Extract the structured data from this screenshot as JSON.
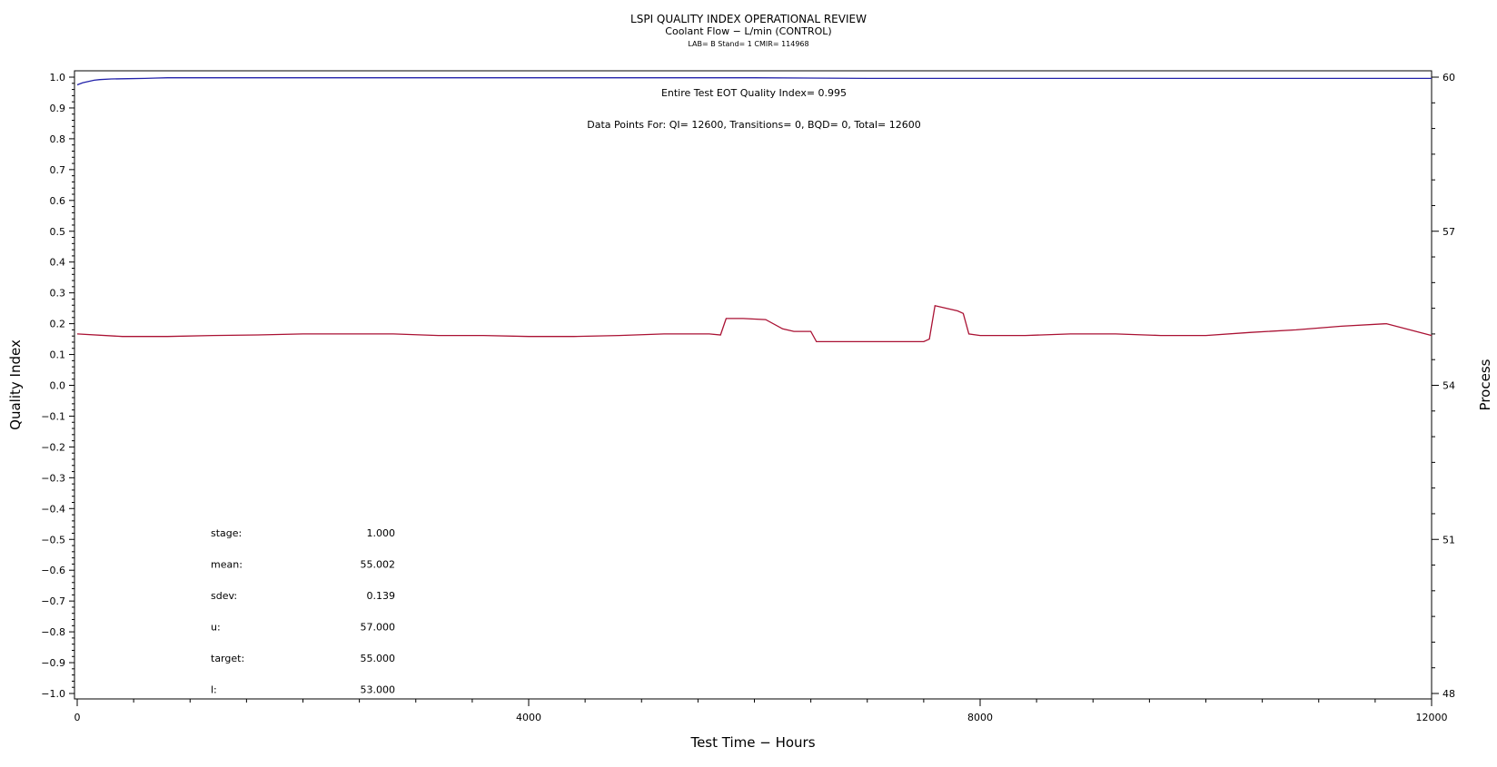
{
  "chart_data": {
    "type": "line",
    "title": "LSPI QUALITY INDEX OPERATIONAL REVIEW",
    "subtitle": "Coolant Flow − L/min (CONTROL)",
    "subtitle2": "LAB= B Stand= 1 CMIR= 114968",
    "xlabel": "Test Time − Hours",
    "ylabel": "Quality Index",
    "y2label": "Process",
    "xlim": [
      0,
      12000
    ],
    "ylim": [
      -1.0,
      1.0
    ],
    "y2lim": [
      48,
      60
    ],
    "x_ticks": [
      "0",
      "4000",
      "8000",
      "12000"
    ],
    "y_ticks": [
      "1.0",
      "0.9",
      "0.8",
      "0.7",
      "0.6",
      "0.5",
      "0.4",
      "0.3",
      "0.2",
      "0.1",
      "0.0",
      "−0.1",
      "−0.2",
      "−0.3",
      "−0.4",
      "−0.5",
      "−0.6",
      "−0.7",
      "−0.8",
      "−0.9",
      "−1.0"
    ],
    "y2_ticks": [
      "60",
      "57",
      "54",
      "51",
      "48"
    ],
    "grid": false,
    "annotations": {
      "eot": "Entire Test EOT Quality Index=   0.995",
      "points": "Data Points For: QI= 12600, Transitions=     0, BQD=     0, Total= 12600"
    },
    "stats": [
      {
        "label": "stage:",
        "value": "1.000"
      },
      {
        "label": "mean:",
        "value": "55.002"
      },
      {
        "label": "sdev:",
        "value": "0.139"
      },
      {
        "label": "u:",
        "value": "57.000"
      },
      {
        "label": "target:",
        "value": "55.000"
      },
      {
        "label": "l:",
        "value": "53.000"
      }
    ],
    "series": [
      {
        "axis": "left",
        "color": "#2222aa",
        "x": [
          0,
          20,
          50,
          100,
          150,
          200,
          300,
          450,
          600,
          700,
          800,
          1500,
          3000,
          6000,
          7000,
          9000,
          12000
        ],
        "values": [
          0.975,
          0.978,
          0.982,
          0.986,
          0.99,
          0.992,
          0.994,
          0.995,
          0.996,
          0.997,
          0.998,
          0.998,
          0.998,
          0.998,
          0.996,
          0.996,
          0.996
        ]
      },
      {
        "axis": "right",
        "color": "#aa1133",
        "x": [
          0,
          400,
          800,
          1200,
          1600,
          2000,
          2400,
          2800,
          3200,
          3600,
          4000,
          4400,
          4800,
          5200,
          5600,
          5700,
          5750,
          5900,
          6100,
          6250,
          6350,
          6500,
          6550,
          6800,
          7200,
          7500,
          7550,
          7600,
          7700,
          7800,
          7850,
          7900,
          8000,
          8400,
          8800,
          9200,
          9600,
          10000,
          10400,
          10800,
          11200,
          11600,
          12000
        ],
        "values": [
          55.0,
          54.95,
          54.95,
          54.97,
          54.98,
          55.0,
          55.0,
          55.0,
          54.97,
          54.97,
          54.95,
          54.95,
          54.97,
          55.0,
          55.0,
          54.98,
          55.3,
          55.3,
          55.28,
          55.1,
          55.05,
          55.05,
          54.85,
          54.85,
          54.85,
          54.85,
          54.9,
          55.55,
          55.5,
          55.45,
          55.4,
          55.0,
          54.97,
          54.97,
          55.0,
          55.0,
          54.97,
          54.97,
          55.03,
          55.08,
          55.15,
          55.2,
          54.97
        ]
      }
    ]
  }
}
